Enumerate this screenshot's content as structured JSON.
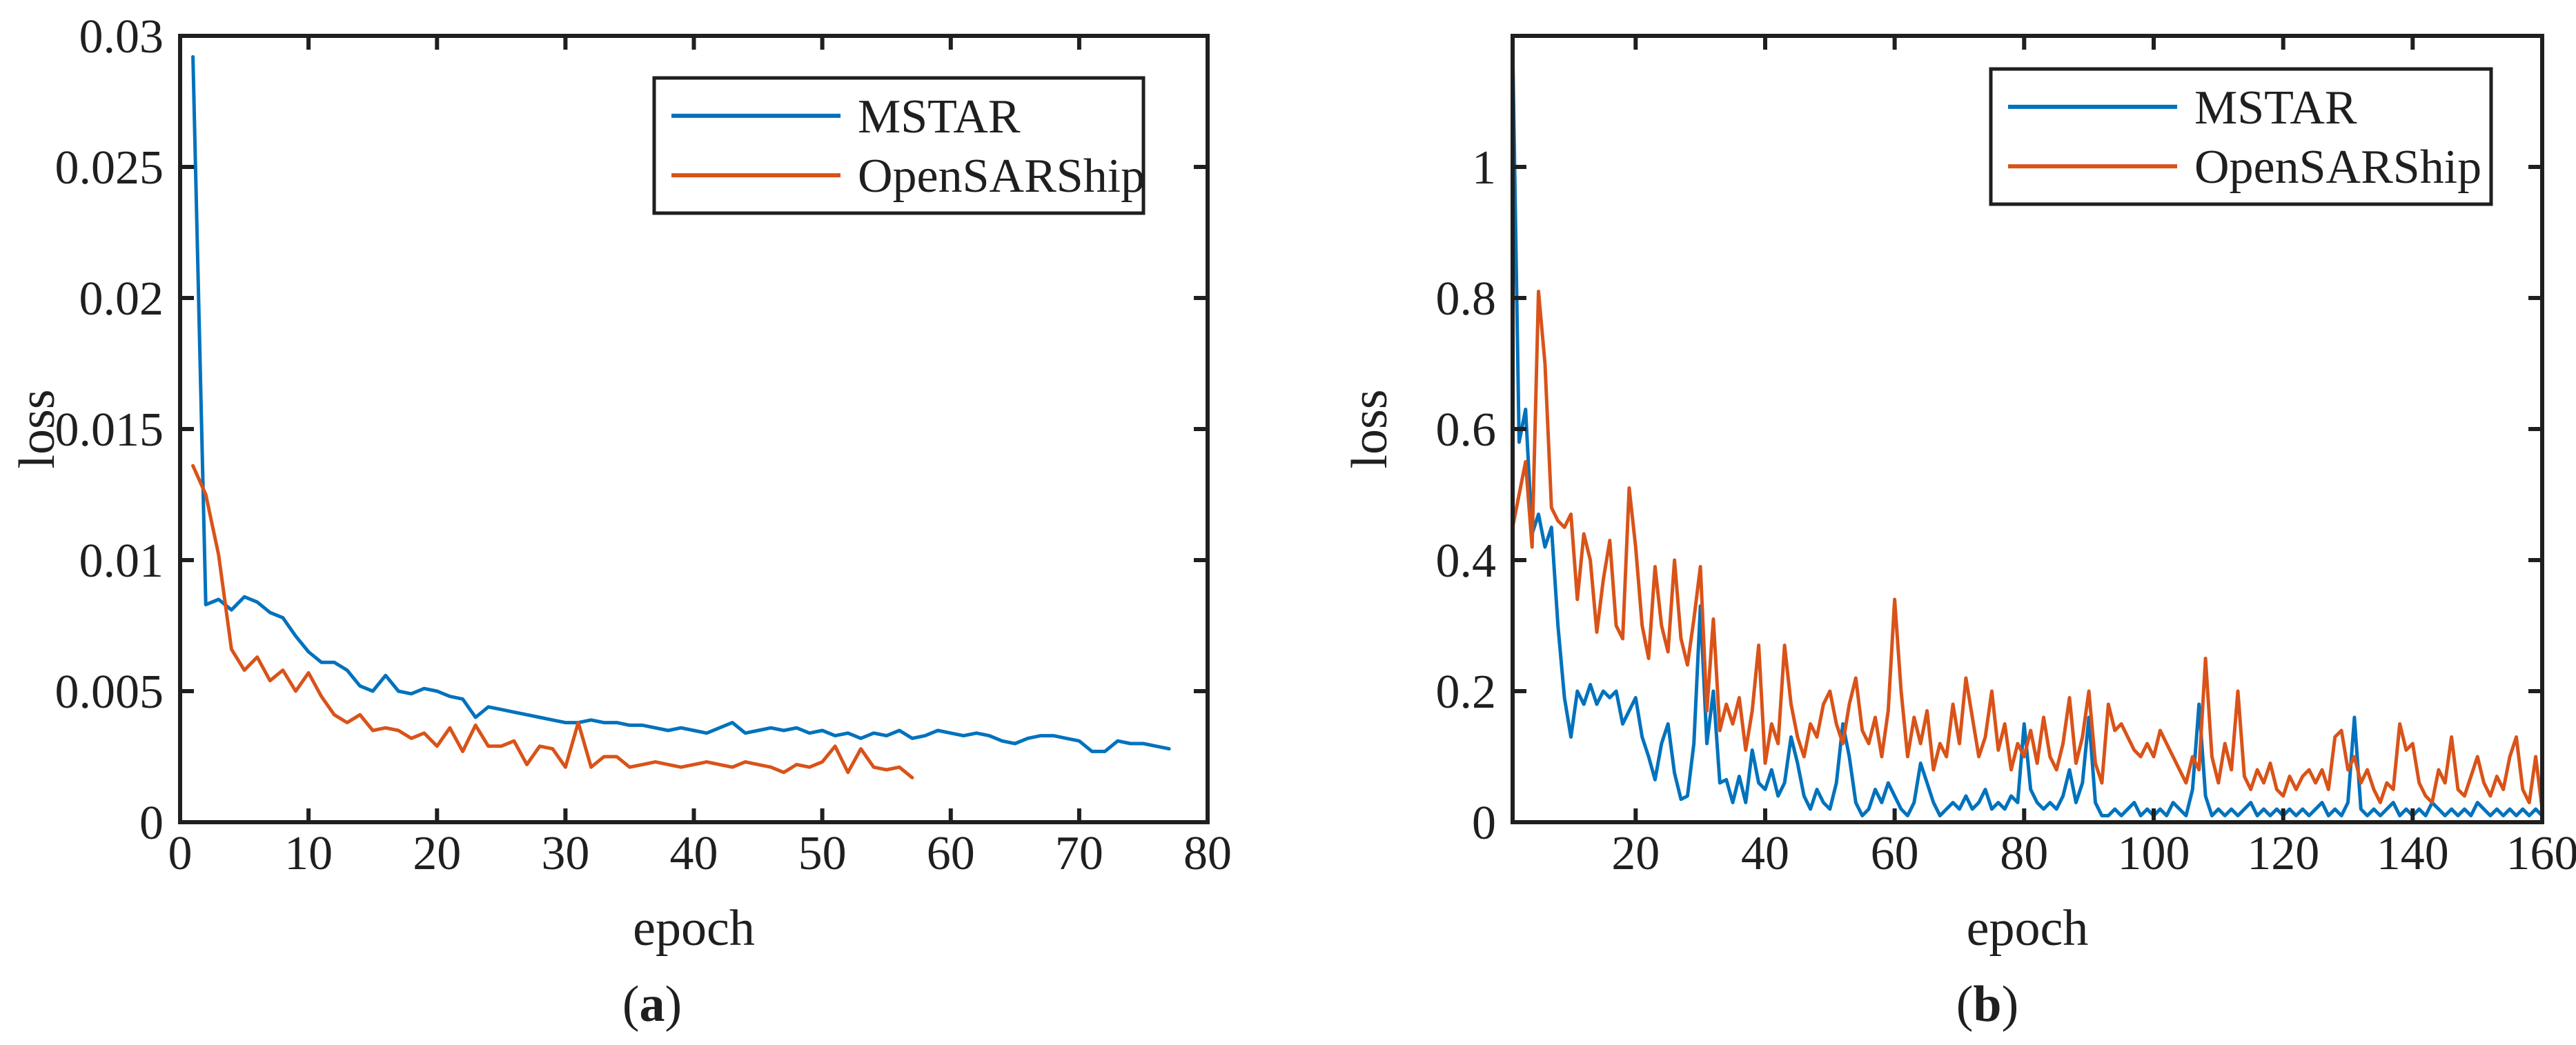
{
  "page": {
    "background": "#ffffff",
    "kind": "two-panel-loss-figure"
  },
  "style": {
    "axis_color": "#1f1f1f",
    "text_color": "#1f1f1f",
    "series_line_width": 5,
    "axis_line_width": 6,
    "mstar_color": "#0072BD",
    "opensarship_color": "#D95319"
  },
  "chart_data": [
    {
      "id": "a",
      "type": "line",
      "caption": {
        "open": "(",
        "letter": "a",
        "close": ")"
      },
      "xlabel": "epoch",
      "ylabel": "loss",
      "xlim": [
        0,
        80
      ],
      "ylim": [
        0,
        0.03
      ],
      "grid": false,
      "legend_position": "top-right",
      "xticks": [
        0,
        10,
        20,
        30,
        40,
        50,
        60,
        70,
        80
      ],
      "xtick_labels": [
        "0",
        "10",
        "20",
        "30",
        "40",
        "50",
        "60",
        "70",
        "80"
      ],
      "yticks": [
        0,
        0.005,
        0.01,
        0.015,
        0.02,
        0.025,
        0.03
      ],
      "ytick_labels": [
        "0",
        "0.005",
        "0.01",
        "0.015",
        "0.02",
        "0.025",
        "0.03"
      ],
      "legend": [
        {
          "label": "MSTAR",
          "color": "#0072BD"
        },
        {
          "label": "OpenSARShip",
          "color": "#D95319"
        }
      ],
      "series": [
        {
          "name": "MSTAR",
          "color": "#0072BD",
          "x_start": 1,
          "x_step": 1,
          "y": [
            0.0292,
            0.0083,
            0.0085,
            0.0081,
            0.0086,
            0.0084,
            0.008,
            0.0078,
            0.0071,
            0.0065,
            0.0061,
            0.0061,
            0.0058,
            0.0052,
            0.005,
            0.0056,
            0.005,
            0.0049,
            0.0051,
            0.005,
            0.0048,
            0.0047,
            0.004,
            0.0044,
            0.0043,
            0.0042,
            0.0041,
            0.004,
            0.0039,
            0.0038,
            0.0038,
            0.0039,
            0.0038,
            0.0038,
            0.0037,
            0.0037,
            0.0036,
            0.0035,
            0.0036,
            0.0035,
            0.0034,
            0.0036,
            0.0038,
            0.0034,
            0.0035,
            0.0036,
            0.0035,
            0.0036,
            0.0034,
            0.0035,
            0.0033,
            0.0034,
            0.0032,
            0.0034,
            0.0033,
            0.0035,
            0.0032,
            0.0033,
            0.0035,
            0.0034,
            0.0033,
            0.0034,
            0.0033,
            0.0031,
            0.003,
            0.0032,
            0.0033,
            0.0033,
            0.0032,
            0.0031,
            0.0027,
            0.0027,
            0.0031,
            0.003,
            0.003,
            0.0029,
            0.0028
          ]
        },
        {
          "name": "OpenSARShip",
          "color": "#D95319",
          "x_start": 1,
          "x_step": 1,
          "y": [
            0.0136,
            0.0125,
            0.0102,
            0.0066,
            0.0058,
            0.0063,
            0.0054,
            0.0058,
            0.005,
            0.0057,
            0.0048,
            0.0041,
            0.0038,
            0.0041,
            0.0035,
            0.0036,
            0.0035,
            0.0032,
            0.0034,
            0.0029,
            0.0036,
            0.0027,
            0.0037,
            0.0029,
            0.0029,
            0.0031,
            0.0022,
            0.0029,
            0.0028,
            0.0021,
            0.0038,
            0.0021,
            0.0025,
            0.0025,
            0.0021,
            0.0022,
            0.0023,
            0.0022,
            0.0021,
            0.0022,
            0.0023,
            0.0022,
            0.0021,
            0.0023,
            0.0022,
            0.0021,
            0.0019,
            0.0022,
            0.0021,
            0.0023,
            0.0029,
            0.0019,
            0.0028,
            0.0021,
            0.002,
            0.0021,
            0.0017
          ]
        }
      ]
    },
    {
      "id": "b",
      "type": "line",
      "caption": {
        "open": "(",
        "letter": "b",
        "close": ")"
      },
      "xlabel": "epoch",
      "ylabel": "loss",
      "xlim": [
        1,
        160
      ],
      "ylim": [
        0,
        1.2
      ],
      "grid": false,
      "legend_position": "top-right",
      "xticks": [
        20,
        40,
        60,
        80,
        100,
        120,
        140,
        160
      ],
      "xtick_labels": [
        "20",
        "40",
        "60",
        "80",
        "100",
        "120",
        "140",
        "160"
      ],
      "yticks": [
        0,
        0.2,
        0.4,
        0.6,
        0.8,
        1
      ],
      "ytick_labels": [
        "0",
        "0.2",
        "0.4",
        "0.6",
        "0.8",
        "1"
      ],
      "legend": [
        {
          "label": "MSTAR",
          "color": "#0072BD"
        },
        {
          "label": "OpenSARShip",
          "color": "#D95319"
        }
      ],
      "series": [
        {
          "name": "MSTAR",
          "color": "#0072BD",
          "x_start": 1,
          "x_step": 1,
          "y": [
            1.19,
            0.58,
            0.63,
            0.44,
            0.47,
            0.42,
            0.45,
            0.3,
            0.19,
            0.13,
            0.2,
            0.18,
            0.21,
            0.18,
            0.2,
            0.19,
            0.2,
            0.15,
            0.17,
            0.19,
            0.13,
            0.1,
            0.065,
            0.12,
            0.15,
            0.075,
            0.035,
            0.04,
            0.12,
            0.33,
            0.12,
            0.2,
            0.06,
            0.065,
            0.03,
            0.07,
            0.03,
            0.11,
            0.06,
            0.05,
            0.08,
            0.04,
            0.06,
            0.13,
            0.09,
            0.04,
            0.02,
            0.05,
            0.03,
            0.02,
            0.06,
            0.15,
            0.1,
            0.03,
            0.01,
            0.02,
            0.05,
            0.03,
            0.06,
            0.04,
            0.02,
            0.01,
            0.03,
            0.09,
            0.06,
            0.03,
            0.01,
            0.02,
            0.03,
            0.02,
            0.04,
            0.02,
            0.03,
            0.05,
            0.02,
            0.03,
            0.02,
            0.04,
            0.03,
            0.15,
            0.05,
            0.03,
            0.02,
            0.03,
            0.02,
            0.04,
            0.08,
            0.03,
            0.06,
            0.16,
            0.03,
            0.01,
            0.01,
            0.02,
            0.01,
            0.02,
            0.03,
            0.01,
            0.02,
            0.01,
            0.02,
            0.01,
            0.03,
            0.02,
            0.01,
            0.05,
            0.18,
            0.04,
            0.01,
            0.02,
            0.01,
            0.02,
            0.01,
            0.02,
            0.03,
            0.01,
            0.02,
            0.01,
            0.02,
            0.01,
            0.02,
            0.01,
            0.02,
            0.01,
            0.02,
            0.03,
            0.01,
            0.02,
            0.01,
            0.03,
            0.16,
            0.02,
            0.01,
            0.02,
            0.01,
            0.02,
            0.03,
            0.01,
            0.02,
            0.01,
            0.02,
            0.01,
            0.03,
            0.02,
            0.01,
            0.02,
            0.01,
            0.02,
            0.01,
            0.03,
            0.02,
            0.01,
            0.02,
            0.01,
            0.02,
            0.01,
            0.02,
            0.01,
            0.02,
            0.01
          ]
        },
        {
          "name": "OpenSARShip",
          "color": "#D95319",
          "x_start": 1,
          "x_step": 1,
          "y": [
            0.45,
            0.5,
            0.55,
            0.42,
            0.81,
            0.7,
            0.48,
            0.46,
            0.45,
            0.47,
            0.34,
            0.44,
            0.4,
            0.29,
            0.37,
            0.43,
            0.3,
            0.28,
            0.51,
            0.42,
            0.3,
            0.25,
            0.39,
            0.3,
            0.26,
            0.4,
            0.28,
            0.24,
            0.31,
            0.39,
            0.17,
            0.31,
            0.14,
            0.18,
            0.15,
            0.19,
            0.11,
            0.17,
            0.27,
            0.09,
            0.15,
            0.12,
            0.27,
            0.18,
            0.13,
            0.1,
            0.15,
            0.13,
            0.18,
            0.2,
            0.15,
            0.12,
            0.18,
            0.22,
            0.14,
            0.12,
            0.16,
            0.1,
            0.17,
            0.34,
            0.2,
            0.1,
            0.16,
            0.12,
            0.17,
            0.08,
            0.12,
            0.1,
            0.18,
            0.12,
            0.22,
            0.16,
            0.1,
            0.13,
            0.2,
            0.11,
            0.15,
            0.08,
            0.12,
            0.1,
            0.14,
            0.09,
            0.16,
            0.1,
            0.08,
            0.12,
            0.19,
            0.09,
            0.13,
            0.2,
            0.09,
            0.06,
            0.18,
            0.14,
            0.15,
            0.13,
            0.11,
            0.1,
            0.12,
            0.1,
            0.14,
            0.12,
            0.1,
            0.08,
            0.06,
            0.1,
            0.08,
            0.25,
            0.1,
            0.06,
            0.12,
            0.08,
            0.2,
            0.07,
            0.05,
            0.08,
            0.06,
            0.09,
            0.05,
            0.04,
            0.07,
            0.05,
            0.07,
            0.08,
            0.06,
            0.08,
            0.05,
            0.13,
            0.14,
            0.08,
            0.1,
            0.06,
            0.08,
            0.05,
            0.03,
            0.06,
            0.05,
            0.15,
            0.11,
            0.12,
            0.06,
            0.04,
            0.03,
            0.08,
            0.06,
            0.13,
            0.05,
            0.04,
            0.07,
            0.1,
            0.06,
            0.04,
            0.07,
            0.05,
            0.1,
            0.13,
            0.05,
            0.03,
            0.1,
            0.02
          ]
        }
      ]
    }
  ]
}
